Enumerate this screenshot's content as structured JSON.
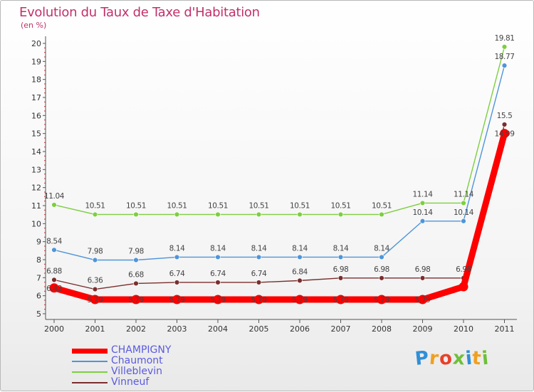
{
  "title": "Evolution du Taux de Taxe d'Habitation",
  "subtitle": "(en %)",
  "chart_data": {
    "type": "line",
    "title": "Evolution du Taux de Taxe d'Habitation",
    "ylabel": "(en %)",
    "xlabel": "",
    "x": [
      "2000",
      "2001",
      "2002",
      "2003",
      "2004",
      "2005",
      "2006",
      "2007",
      "2008",
      "2009",
      "2010",
      "2011"
    ],
    "ylim": [
      5,
      20
    ],
    "yticks": [
      "5",
      "6",
      "7",
      "8",
      "9",
      "10",
      "11",
      "12",
      "13",
      "14",
      "15",
      "16",
      "17",
      "18",
      "19",
      "20"
    ],
    "grid": false,
    "legend_position": "bottom-left",
    "series": [
      {
        "name": "CHAMPIGNY",
        "color": "#ff0000",
        "values": [
          6.43,
          5.79,
          5.79,
          5.79,
          5.79,
          5.79,
          5.79,
          5.79,
          5.79,
          5.79,
          6.5,
          15.0
        ],
        "labels": [
          "6.43",
          "5.79",
          "5.79",
          "5.79",
          "5.79",
          "5.79",
          "5.79",
          "5.79",
          "5.79",
          "5.79",
          "",
          "14.99"
        ]
      },
      {
        "name": "Chaumont",
        "color": "#4f95d9",
        "values": [
          8.54,
          7.98,
          7.98,
          8.14,
          8.14,
          8.14,
          8.14,
          8.14,
          8.14,
          10.14,
          10.14,
          18.77
        ],
        "labels": [
          "8.54",
          "7.98",
          "7.98",
          "8.14",
          "8.14",
          "8.14",
          "8.14",
          "8.14",
          "8.14",
          "10.14",
          "10.14",
          "18.77"
        ]
      },
      {
        "name": "Villeblevin",
        "color": "#7ccf3f",
        "values": [
          11.04,
          10.51,
          10.51,
          10.51,
          10.51,
          10.51,
          10.51,
          10.51,
          10.51,
          11.14,
          11.14,
          19.81
        ],
        "labels": [
          "11.04",
          "10.51",
          "10.51",
          "10.51",
          "10.51",
          "10.51",
          "10.51",
          "10.51",
          "10.51",
          "11.14",
          "11.14",
          "19.81"
        ]
      },
      {
        "name": "Vinneuf",
        "color": "#7b2e2e",
        "values": [
          6.88,
          6.36,
          6.68,
          6.74,
          6.74,
          6.74,
          6.84,
          6.98,
          6.98,
          6.98,
          6.98,
          15.5
        ],
        "labels": [
          "6.88",
          "6.36",
          "6.68",
          "6.74",
          "6.74",
          "6.74",
          "6.84",
          "6.98",
          "6.98",
          "6.98",
          "6.98",
          "15.5"
        ]
      }
    ]
  },
  "logo": {
    "letters": [
      {
        "ch": "P",
        "color": "#2f8fd8"
      },
      {
        "ch": "r",
        "color": "#f0a020"
      },
      {
        "ch": "o",
        "color": "#e8402a"
      },
      {
        "ch": "x",
        "color": "#6fbf3a"
      },
      {
        "ch": "i",
        "color": "#2f8fd8"
      },
      {
        "ch": "t",
        "color": "#f0a020"
      },
      {
        "ch": "i",
        "color": "#6fbf3a"
      }
    ]
  }
}
